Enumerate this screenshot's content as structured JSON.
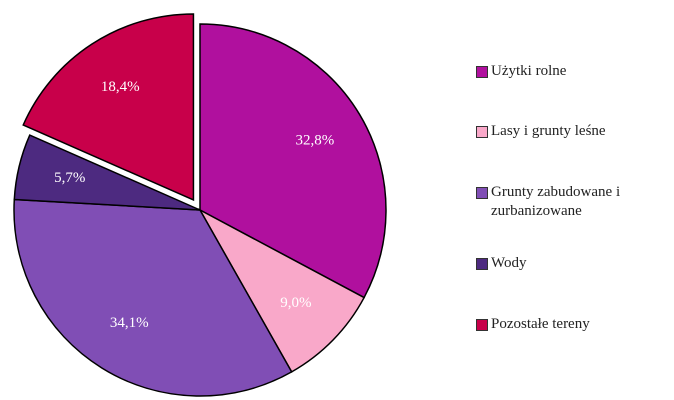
{
  "chart_data": {
    "type": "pie",
    "categories": [
      "Użytki rolne",
      "Lasy i grunty leśne",
      "Grunty zabudowane i zurbanizowane",
      "Wody",
      "Pozostałe tereny"
    ],
    "values": [
      32.8,
      9.0,
      34.1,
      5.7,
      18.4
    ],
    "value_labels": [
      "32,8%",
      "9,0%",
      "34,1%",
      "5,7%",
      "18,4%"
    ],
    "colors": [
      "#b0109e",
      "#f9a8c9",
      "#804eb5",
      "#4d2a80",
      "#c8004a"
    ],
    "legend": "right"
  }
}
